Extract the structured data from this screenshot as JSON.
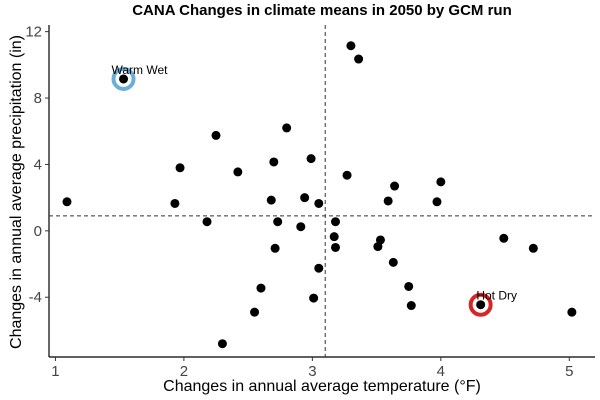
{
  "chart_data": {
    "type": "scatter",
    "title": "CANA Changes in climate means in 2050 by GCM run",
    "xlabel": "Changes in annual average temperature (°F)",
    "ylabel": "Changes in annual average precipitation (in)",
    "xlim": [
      0.95,
      5.2
    ],
    "ylim": [
      -7.6,
      12.4
    ],
    "xticks": [
      1,
      2,
      3,
      4,
      5
    ],
    "yticks": [
      -4,
      0,
      4,
      8,
      12
    ],
    "grid": false,
    "reference_lines": {
      "vertical_x": 3.1,
      "horizontal_y": 0.9
    },
    "points": [
      {
        "x": 1.09,
        "y": 1.75
      },
      {
        "x": 1.53,
        "y": 9.15
      },
      {
        "x": 1.93,
        "y": 1.65
      },
      {
        "x": 1.97,
        "y": 3.8
      },
      {
        "x": 2.18,
        "y": 0.55
      },
      {
        "x": 2.25,
        "y": 5.75
      },
      {
        "x": 2.3,
        "y": -6.8
      },
      {
        "x": 2.42,
        "y": 3.55
      },
      {
        "x": 2.55,
        "y": -4.9
      },
      {
        "x": 2.6,
        "y": -3.45
      },
      {
        "x": 2.68,
        "y": 1.85
      },
      {
        "x": 2.7,
        "y": 4.15
      },
      {
        "x": 2.71,
        "y": -1.05
      },
      {
        "x": 2.73,
        "y": 0.55
      },
      {
        "x": 2.8,
        "y": 6.2
      },
      {
        "x": 2.91,
        "y": 0.25
      },
      {
        "x": 2.94,
        "y": 2.0
      },
      {
        "x": 2.99,
        "y": 4.35
      },
      {
        "x": 3.01,
        "y": -4.05
      },
      {
        "x": 3.05,
        "y": 1.65
      },
      {
        "x": 3.05,
        "y": -2.25
      },
      {
        "x": 3.17,
        "y": -0.35
      },
      {
        "x": 3.18,
        "y": 0.55
      },
      {
        "x": 3.18,
        "y": -1.0
      },
      {
        "x": 3.27,
        "y": 3.35
      },
      {
        "x": 3.3,
        "y": 11.15
      },
      {
        "x": 3.36,
        "y": 10.35
      },
      {
        "x": 3.51,
        "y": -0.95
      },
      {
        "x": 3.53,
        "y": -0.55
      },
      {
        "x": 3.59,
        "y": 1.8
      },
      {
        "x": 3.63,
        "y": -1.9
      },
      {
        "x": 3.64,
        "y": 2.7
      },
      {
        "x": 3.75,
        "y": -3.35
      },
      {
        "x": 3.77,
        "y": -4.5
      },
      {
        "x": 3.97,
        "y": 1.75
      },
      {
        "x": 4.0,
        "y": 2.95
      },
      {
        "x": 4.31,
        "y": -4.45
      },
      {
        "x": 4.49,
        "y": -0.45
      },
      {
        "x": 4.72,
        "y": -1.05
      },
      {
        "x": 5.02,
        "y": -4.9
      }
    ],
    "highlights": [
      {
        "label": "Warm Wet",
        "x": 1.53,
        "y": 9.15,
        "color": "#6baed6"
      },
      {
        "label": "Hot Dry",
        "x": 4.31,
        "y": -4.45,
        "color": "#d62728"
      }
    ]
  }
}
